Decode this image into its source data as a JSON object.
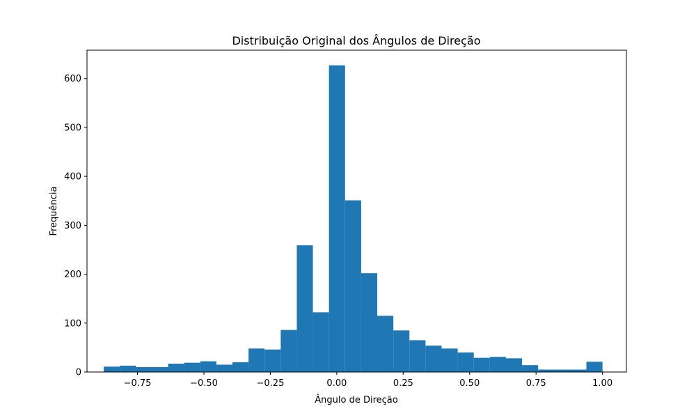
{
  "chart_data": {
    "type": "bar",
    "title": "Distribuição Original dos Ângulos de Direção",
    "xlabel": "Ângulo de Direção",
    "ylabel": "Frequência",
    "xlim": [
      -0.94,
      1.09
    ],
    "ylim": [
      0,
      658
    ],
    "xticks": [
      -0.75,
      -0.5,
      -0.25,
      0.0,
      0.25,
      0.5,
      0.75,
      1.0
    ],
    "xtick_labels": [
      "−0.75",
      "−0.50",
      "−0.25",
      "0.00",
      "0.25",
      "0.50",
      "0.75",
      "1.00"
    ],
    "yticks": [
      0,
      100,
      200,
      300,
      400,
      500,
      600
    ],
    "ytick_labels": [
      "0",
      "100",
      "200",
      "300",
      "400",
      "500",
      "600"
    ],
    "grid": false,
    "bar_color": "#1f77b4",
    "bin_start": -0.877,
    "bin_end": 1.0,
    "values": [
      11,
      13,
      10,
      10,
      17,
      19,
      22,
      15,
      20,
      48,
      46,
      86,
      259,
      122,
      627,
      351,
      202,
      115,
      85,
      65,
      54,
      48,
      40,
      29,
      31,
      28,
      14,
      5,
      5,
      5,
      21
    ]
  }
}
